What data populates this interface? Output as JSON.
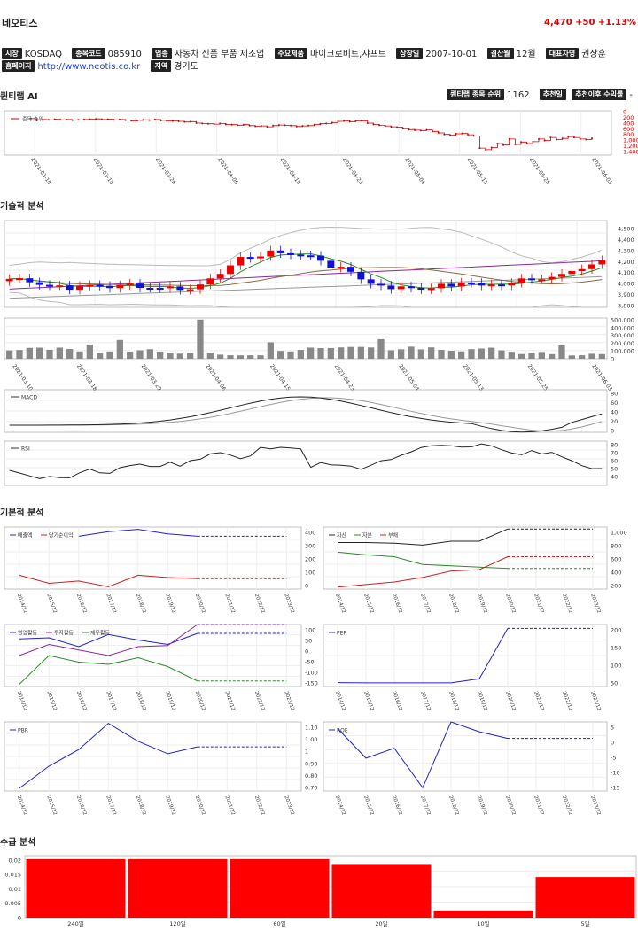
{
  "company": {
    "name": "네오티스"
  },
  "price": {
    "current": "4,470",
    "change": "+50",
    "pct": "+1.13%"
  },
  "info": {
    "market": {
      "label": "시장",
      "value": "KOSDAQ"
    },
    "code": {
      "label": "종목코드",
      "value": "085910"
    },
    "industry": {
      "label": "업종",
      "value": "자동차 신품 부품 제조업"
    },
    "product": {
      "label": "주요제품",
      "value": "마이크로비트,샤프트"
    },
    "listed": {
      "label": "상장일",
      "value": "2007-10-01"
    },
    "fiscal": {
      "label": "결산월",
      "value": "12월"
    },
    "ceo": {
      "label": "대표자명",
      "value": "권상훈"
    },
    "homepage": {
      "label": "홈페이지",
      "value": "http://www.neotis.co.kr"
    },
    "region": {
      "label": "지역",
      "value": "경기도"
    }
  },
  "quant": {
    "title": "퀀티랩 AI",
    "rank_label": "퀀티랩 종목 순위",
    "rank_value": "1162",
    "rec_date_label": "추천일",
    "rec_return_label": "추천이후 수익률",
    "rec_return_value": "-",
    "legend": "종목 순위",
    "yticks": [
      "0",
      "200",
      "400",
      "600",
      "800",
      "1,000",
      "1,200",
      "1,400"
    ],
    "color": "#d00000"
  },
  "dates": [
    "2021-03-10",
    "2021-03-18",
    "2021-03-29",
    "2021-04-06",
    "2021-04-15",
    "2021-04-23",
    "2021-05-04",
    "2021-05-13",
    "2021-05-25",
    "2021-06-03"
  ],
  "tech": {
    "title": "기술적 분석",
    "price_ticks": [
      "4,500",
      "4,400",
      "4,300",
      "4,200",
      "4,100",
      "4,000",
      "3,900",
      "3,800"
    ],
    "volume_ticks": [
      "500,000",
      "400,000",
      "300,000",
      "200,000",
      "100,000",
      "0"
    ],
    "macd_label": "MACD",
    "macd_ticks": [
      "80",
      "60",
      "40",
      "20",
      "0"
    ],
    "rsi_label": "RSI",
    "rsi_ticks": [
      "80",
      "70",
      "60",
      "50",
      "40"
    ],
    "up_color": "#ee0000",
    "down_color": "#1010dd"
  },
  "fund": {
    "title": "기본적 분석",
    "years": [
      "2014/12",
      "2015/12",
      "2016/12",
      "2017/12",
      "2018/12",
      "2019/12",
      "2020/12",
      "2021/12",
      "2022/12",
      "2023/12"
    ],
    "panels": [
      {
        "legend": [
          "매출액",
          "당기순이익"
        ],
        "ticks": [
          "400",
          "300",
          "200",
          "100",
          "0"
        ]
      },
      {
        "legend": [
          "자산",
          "자본",
          "부채"
        ],
        "ticks": [
          "1,000",
          "800",
          "600",
          "400",
          "200"
        ]
      },
      {
        "legend": [
          "영업활동",
          "투자활동",
          "재무활동"
        ],
        "ticks": [
          "100",
          "50",
          "0",
          "-50",
          "-100",
          "-150"
        ]
      },
      {
        "legend": [
          "PER"
        ],
        "ticks": [
          "200",
          "150",
          "100",
          "50"
        ]
      },
      {
        "legend": [
          "PBR"
        ],
        "ticks": [
          "1.10",
          "1.00",
          "1",
          "0.90",
          "0.80",
          "0.70"
        ]
      },
      {
        "legend": [
          "ROE"
        ],
        "ticks": [
          "5",
          "0",
          "-5",
          "-10",
          "-15"
        ]
      }
    ]
  },
  "supply": {
    "title": "수급 분석",
    "yticks": [
      "0.02",
      "0.015",
      "0.01",
      "0.005",
      "0"
    ],
    "color": "#ff0000",
    "chart_data": {
      "type": "bar",
      "categories": [
        "240일",
        "120일",
        "60일",
        "20일",
        "10일",
        "5일"
      ],
      "values": [
        0.0203,
        0.0203,
        0.0203,
        0.0186,
        0.0025,
        0.0141
      ],
      "ylim": [
        0,
        0.0215
      ]
    }
  }
}
